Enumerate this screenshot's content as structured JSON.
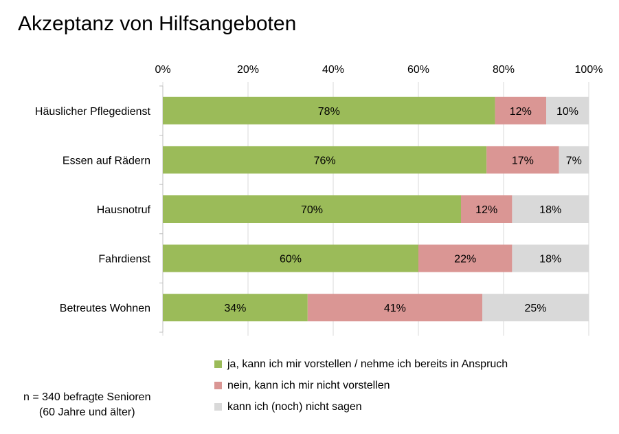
{
  "chart_data": {
    "type": "bar",
    "orientation": "horizontal",
    "stacked": true,
    "title": "Akzeptanz von Hilfsangeboten",
    "categories": [
      "Häuslicher Pflegedienst",
      "Essen auf Rädern",
      "Hausnotruf",
      "Fahrdienst",
      "Betreutes Wohnen"
    ],
    "series": [
      {
        "name": "ja, kann ich mir vorstellen / nehme ich bereits in Anspruch",
        "color": "#9BBB59",
        "values": [
          78,
          76,
          70,
          60,
          34
        ],
        "labels": [
          "78%",
          "76%",
          "70%",
          "60%",
          "34%"
        ]
      },
      {
        "name": "nein, kann ich mir nicht vorstellen",
        "color": "#DA9694",
        "values": [
          12,
          17,
          12,
          22,
          41
        ],
        "labels": [
          "12%",
          "17%",
          "12%",
          "22%",
          "41%"
        ]
      },
      {
        "name": "kann ich (noch) nicht sagen",
        "color": "#D9D9D9",
        "values": [
          10,
          7,
          18,
          18,
          25
        ],
        "labels": [
          "10%",
          "7%",
          "18%",
          "18%",
          "25%"
        ]
      }
    ],
    "xlim": [
      0,
      100
    ],
    "xticks": [
      "0%",
      "20%",
      "40%",
      "60%",
      "80%",
      "100%"
    ],
    "axis_position": "top",
    "grid": true,
    "legend": "bottom"
  },
  "note": {
    "line1": "n = 340 befragte Senioren",
    "line2": "(60 Jahre und älter)"
  }
}
